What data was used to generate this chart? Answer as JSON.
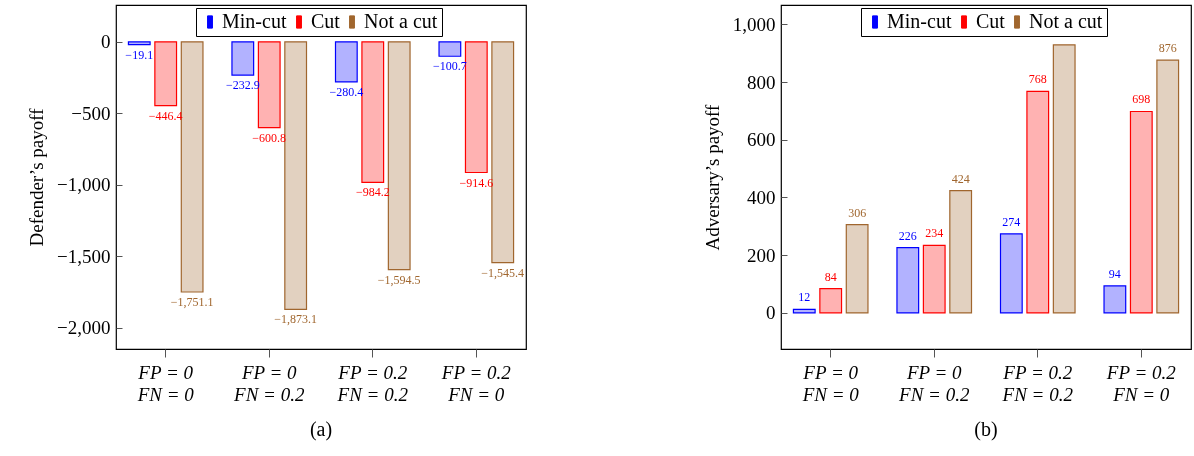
{
  "chart_data": [
    {
      "type": "bar",
      "title": "(a)",
      "ylabel": "Defender’s payoff",
      "categories": [
        "FP = 0\nFN = 0",
        "FP = 0\nFN = 0.2",
        "FP = 0.2\nFN = 0.2",
        "FP = 0.2\nFN = 0"
      ],
      "series": [
        {
          "name": "Min-cut",
          "color": "#0000ff",
          "values": [
            -19.1,
            -232.9,
            -280.4,
            -100.7
          ],
          "value_labels": [
            "−19.1",
            "−232.9",
            "−280.4",
            "−100.7"
          ]
        },
        {
          "name": "Cut",
          "color": "#ff0000",
          "values": [
            -446.4,
            -600.8,
            -984.2,
            -914.6
          ],
          "value_labels": [
            "−446.4",
            "−600.8",
            "−984.2",
            "−914.6"
          ]
        },
        {
          "name": "Not a cut",
          "color": "#a0662e",
          "values": [
            -1751.1,
            -1873.1,
            -1594.5,
            -1545.4
          ],
          "value_labels": [
            "−1,751.1",
            "−1,873.1",
            "−1,594.5",
            "−1,545.4"
          ]
        }
      ],
      "ylim": [
        -2150,
        258
      ],
      "yticks": [
        {
          "value": 0,
          "label": "0"
        },
        {
          "value": -500,
          "label": "−500"
        },
        {
          "value": -1000,
          "label": "−1,000"
        },
        {
          "value": -1500,
          "label": "−1,500"
        },
        {
          "value": -2000,
          "label": "−2,000"
        }
      ],
      "legend": "top",
      "grid": false
    },
    {
      "type": "bar",
      "title": "(b)",
      "ylabel": "Adversary’s payoff",
      "categories": [
        "FP = 0\nFN = 0",
        "FP = 0\nFN = 0.2",
        "FP = 0.2\nFN = 0.2",
        "FP = 0.2\nFN = 0"
      ],
      "series": [
        {
          "name": "Min-cut",
          "color": "#0000ff",
          "values": [
            12,
            226,
            274,
            94
          ],
          "value_labels": [
            "12",
            "226",
            "274",
            "94"
          ]
        },
        {
          "name": "Cut",
          "color": "#ff0000",
          "values": [
            84,
            234,
            768,
            698
          ],
          "value_labels": [
            "84",
            "234",
            "768",
            "698"
          ]
        },
        {
          "name": "Not a cut",
          "color": "#a0662e",
          "values": [
            306,
            424,
            929,
            876
          ],
          "value_labels": [
            "306",
            "424",
            null,
            "876"
          ]
        }
      ],
      "ylim": [
        -125,
        1067
      ],
      "yticks": [
        0,
        200,
        400,
        600,
        {
          "value": 800,
          "label": "800"
        },
        {
          "value": 1000,
          "label": "1,000"
        }
      ],
      "legend": "top",
      "grid": false
    }
  ]
}
